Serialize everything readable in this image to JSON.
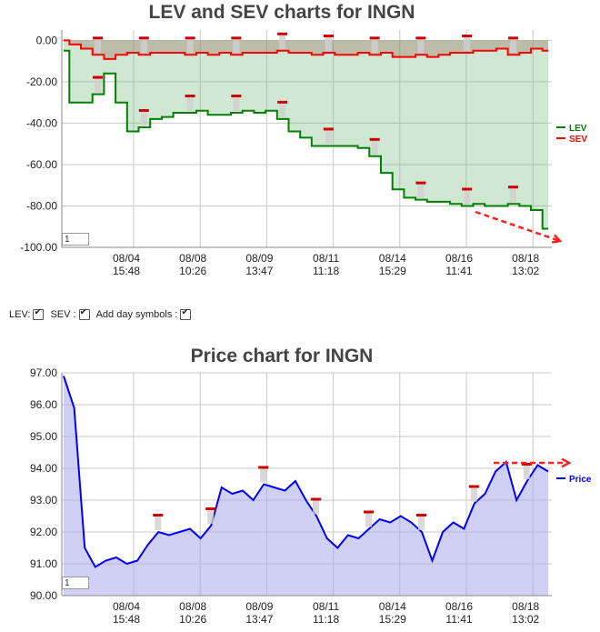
{
  "chart_data": [
    {
      "type": "line",
      "title": "LEV and SEV charts for INGN",
      "y_tick_labels": [
        "0.00",
        "-20.00",
        "-40.00",
        "-60.00",
        "-80.00",
        "-100.00"
      ],
      "ylim": [
        -100,
        5
      ],
      "x_tick_labels": [
        {
          "date": "08/04",
          "time": "15:48"
        },
        {
          "date": "08/08",
          "time": "10:26"
        },
        {
          "date": "08/09",
          "time": "13:47"
        },
        {
          "date": "08/11",
          "time": "11:18"
        },
        {
          "date": "08/14",
          "time": "15:29"
        },
        {
          "date": "08/16",
          "time": "11:41"
        },
        {
          "date": "08/18",
          "time": "13:02"
        }
      ],
      "legend_position": "right",
      "grid": true,
      "series": [
        {
          "name": "LEV",
          "color": "#008000",
          "values": [
            -5,
            -30,
            -30,
            -26,
            -16,
            -30,
            -44,
            -42,
            -38,
            -37,
            -35,
            -35,
            -34,
            -36,
            -36,
            -35,
            -34,
            -35,
            -34,
            -38,
            -44,
            -47,
            -51,
            -51,
            -51,
            -51,
            -52,
            -56,
            -64,
            -72,
            -76,
            -77,
            -78,
            -78,
            -79,
            -80,
            -79,
            -80,
            -80,
            -79,
            -80,
            -82,
            -91
          ]
        },
        {
          "name": "SEV",
          "color": "#ff0000",
          "values": [
            0,
            -2,
            -4,
            -7,
            -9,
            -7,
            -6,
            -7,
            -6,
            -6,
            -6,
            -7,
            -6,
            -7,
            -6,
            -7,
            -6,
            -6,
            -6,
            -5,
            -6,
            -6,
            -7,
            -6,
            -7,
            -7,
            -6,
            -7,
            -6,
            -8,
            -8,
            -7,
            -8,
            -7,
            -6,
            -6,
            -5,
            -5,
            -4,
            -7,
            -6,
            -4,
            -5
          ]
        }
      ],
      "zoom_value": "1"
    },
    {
      "type": "area",
      "title": "Price chart for INGN",
      "y_tick_labels": [
        "97.00",
        "96.00",
        "95.00",
        "94.00",
        "93.00",
        "92.00",
        "91.00",
        "90.00"
      ],
      "ylim": [
        90,
        97
      ],
      "x_tick_labels": [
        {
          "date": "08/04",
          "time": "15:48"
        },
        {
          "date": "08/08",
          "time": "10:26"
        },
        {
          "date": "08/09",
          "time": "13:47"
        },
        {
          "date": "08/11",
          "time": "11:18"
        },
        {
          "date": "08/14",
          "time": "15:29"
        },
        {
          "date": "08/16",
          "time": "11:41"
        },
        {
          "date": "08/18",
          "time": "13:02"
        }
      ],
      "legend_position": "right",
      "grid": true,
      "series": [
        {
          "name": "Price",
          "color": "#0000ff",
          "values": [
            96.9,
            95.9,
            91.5,
            90.9,
            91.1,
            91.2,
            91.0,
            91.1,
            91.6,
            92.0,
            91.9,
            92.0,
            92.1,
            91.8,
            92.2,
            93.4,
            93.2,
            93.3,
            93.0,
            93.5,
            93.4,
            93.3,
            93.6,
            93.0,
            92.5,
            91.8,
            91.5,
            91.9,
            91.8,
            92.1,
            92.4,
            92.3,
            92.5,
            92.3,
            92.0,
            91.1,
            92.0,
            92.3,
            92.1,
            92.9,
            93.2,
            93.9,
            94.2,
            93.0,
            93.6,
            94.1,
            93.9
          ]
        }
      ],
      "zoom_value": "1"
    }
  ],
  "controls": {
    "lev_label": "LEV:",
    "sev_label": "SEV :",
    "day_symbols_label": "Add day symbols :",
    "lev_checked": true,
    "sev_checked": true,
    "day_symbols_checked": true
  }
}
